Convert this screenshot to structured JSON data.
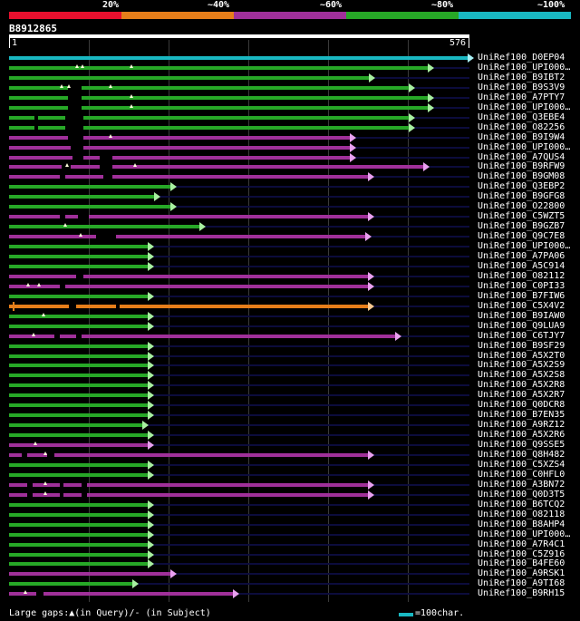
{
  "legend": {
    "labels": [
      "20%",
      "~40%",
      "~60%",
      "~80%",
      "~100%"
    ],
    "colors": [
      "#e8102e",
      "#e67e1a",
      "#a0309a",
      "#27a827",
      "#19b8c2"
    ]
  },
  "query": {
    "id": "B8912865",
    "start": "1",
    "end": "576"
  },
  "hits": [
    {
      "label": "UniRef100_D0EP04",
      "color": "#19b8c2",
      "end": 516,
      "arrow": true,
      "gaps": [],
      "marks": []
    },
    {
      "label": "UniRef100_UPI000…",
      "color": "#27a827",
      "end": 472,
      "arrow": true,
      "gaps": [],
      "marks": [
        85,
        91,
        145
      ]
    },
    {
      "label": "UniRef100_B9IBT2",
      "color": "#27a827",
      "end": 407,
      "arrow": true,
      "gaps": [],
      "marks": []
    },
    {
      "label": "UniRef100_B9S3V9",
      "color": "#27a827",
      "end": 451,
      "arrow": true,
      "gaps": [
        [
          75,
          90
        ]
      ],
      "marks": [
        68,
        76,
        122
      ]
    },
    {
      "label": "UniRef100_A7PTY7",
      "color": "#27a827",
      "end": 472,
      "arrow": true,
      "gaps": [
        [
          75,
          90
        ]
      ],
      "marks": [
        145
      ]
    },
    {
      "label": "UniRef100_UPI000…",
      "color": "#27a827",
      "end": 472,
      "arrow": true,
      "gaps": [
        [
          75,
          90
        ]
      ],
      "marks": [
        145
      ]
    },
    {
      "label": "UniRef100_Q3EBE4",
      "color": "#27a827",
      "end": 451,
      "arrow": true,
      "gaps": [
        [
          38,
          42
        ],
        [
          72,
          92
        ]
      ],
      "marks": []
    },
    {
      "label": "UniRef100_O82256",
      "color": "#27a827",
      "end": 451,
      "arrow": true,
      "gaps": [
        [
          38,
          42
        ],
        [
          72,
          92
        ]
      ],
      "marks": []
    },
    {
      "label": "UniRef100_B9I9W4",
      "color": "#a0309a",
      "end": 386,
      "arrow": true,
      "gaps": [
        [
          75,
          92
        ]
      ],
      "marks": [
        122
      ]
    },
    {
      "label": "UniRef100_UPI000…",
      "color": "#a0309a",
      "end": 386,
      "arrow": true,
      "gaps": [
        [
          78,
          92
        ]
      ],
      "marks": []
    },
    {
      "label": "UniRef100_A7QUS4",
      "color": "#a0309a",
      "end": 386,
      "arrow": true,
      "gaps": [
        [
          80,
          92
        ],
        [
          110,
          124
        ]
      ],
      "marks": []
    },
    {
      "label": "UniRef100_B9RFW9",
      "color": "#a0309a",
      "end": 467,
      "arrow": true,
      "gaps": [
        [
          68,
          78
        ],
        [
          110,
          124
        ]
      ],
      "marks": [
        74,
        149
      ]
    },
    {
      "label": "UniRef100_B9GM08",
      "color": "#a0309a",
      "end": 406,
      "arrow": true,
      "gaps": [
        [
          66,
          72
        ],
        [
          114,
          124
        ]
      ],
      "marks": []
    },
    {
      "label": "UniRef100_Q3EBP2",
      "color": "#27a827",
      "end": 188,
      "arrow": true,
      "gaps": [],
      "marks": []
    },
    {
      "label": "UniRef100_B9GFG8",
      "color": "#27a827",
      "end": 170,
      "arrow": true,
      "gaps": [],
      "marks": []
    },
    {
      "label": "UniRef100_O22800",
      "color": "#27a827",
      "end": 188,
      "arrow": true,
      "gaps": [],
      "marks": []
    },
    {
      "label": "UniRef100_C5WZT5",
      "color": "#a0309a",
      "end": 406,
      "arrow": true,
      "gaps": [
        [
          66,
          72
        ],
        [
          86,
          98
        ]
      ],
      "marks": []
    },
    {
      "label": "UniRef100_B9GZB7",
      "color": "#27a827",
      "end": 220,
      "arrow": true,
      "gaps": [],
      "marks": [
        72
      ]
    },
    {
      "label": "UniRef100_Q9C7E8",
      "color": "#a0309a",
      "end": 403,
      "arrow": true,
      "gaps": [
        [
          106,
          128
        ]
      ],
      "marks": [
        89
      ]
    },
    {
      "label": "UniRef100_UPI000…",
      "color": "#27a827",
      "end": 163,
      "arrow": true,
      "gaps": [],
      "marks": []
    },
    {
      "label": "UniRef100_A7PA06",
      "color": "#27a827",
      "end": 163,
      "arrow": true,
      "gaps": [],
      "marks": []
    },
    {
      "label": "UniRef100_A5C914",
      "color": "#27a827",
      "end": 163,
      "arrow": true,
      "gaps": [],
      "marks": []
    },
    {
      "label": "UniRef100_O82112",
      "color": "#a0309a",
      "end": 406,
      "arrow": true,
      "gaps": [
        [
          84,
          92
        ]
      ],
      "marks": []
    },
    {
      "label": "UniRef100_C0PI33",
      "color": "#a0309a",
      "end": 406,
      "arrow": true,
      "gaps": [
        [
          66,
          72
        ]
      ],
      "marks": [
        31,
        43
      ]
    },
    {
      "label": "UniRef100_B7FIW6",
      "color": "#27a827",
      "end": 163,
      "arrow": true,
      "gaps": [],
      "marks": []
    },
    {
      "label": "UniRef100_C5X4V2",
      "color": "#e67e1a",
      "end": 406,
      "arrow": true,
      "startCap": true,
      "gaps": [
        [
          76,
          84
        ],
        [
          128,
          132
        ]
      ],
      "marks": []
    },
    {
      "label": "UniRef100_B9IAW0",
      "color": "#27a827",
      "end": 163,
      "arrow": true,
      "gaps": [],
      "marks": [
        48
      ]
    },
    {
      "label": "UniRef100_Q9LUA9",
      "color": "#27a827",
      "end": 163,
      "arrow": true,
      "gaps": [],
      "marks": []
    },
    {
      "label": "UniRef100_C6TJY7",
      "color": "#a0309a",
      "end": 436,
      "arrow": true,
      "gaps": [
        [
          60,
          66
        ],
        [
          84,
          90
        ]
      ],
      "marks": [
        37
      ]
    },
    {
      "label": "UniRef100_B9SF29",
      "color": "#27a827",
      "end": 163,
      "arrow": true,
      "gaps": [],
      "marks": []
    },
    {
      "label": "UniRef100_A5X2T0",
      "color": "#27a827",
      "end": 163,
      "arrow": true,
      "gaps": [],
      "marks": []
    },
    {
      "label": "UniRef100_A5X2S9",
      "color": "#27a827",
      "end": 163,
      "arrow": true,
      "gaps": [],
      "marks": []
    },
    {
      "label": "UniRef100_A5X2S8",
      "color": "#27a827",
      "end": 163,
      "arrow": true,
      "gaps": [],
      "marks": []
    },
    {
      "label": "UniRef100_A5X2R8",
      "color": "#27a827",
      "end": 163,
      "arrow": true,
      "gaps": [],
      "marks": []
    },
    {
      "label": "UniRef100_A5X2R7",
      "color": "#27a827",
      "end": 163,
      "arrow": true,
      "gaps": [],
      "marks": []
    },
    {
      "label": "UniRef100_Q0DCR8",
      "color": "#27a827",
      "end": 163,
      "arrow": true,
      "gaps": [],
      "marks": []
    },
    {
      "label": "UniRef100_B7EN35",
      "color": "#27a827",
      "end": 163,
      "arrow": true,
      "gaps": [],
      "marks": []
    },
    {
      "label": "UniRef100_A9RZ12",
      "color": "#27a827",
      "end": 157,
      "arrow": true,
      "gaps": [],
      "marks": []
    },
    {
      "label": "UniRef100_A5X2R6",
      "color": "#27a827",
      "end": 163,
      "arrow": true,
      "gaps": [],
      "marks": []
    },
    {
      "label": "UniRef100_Q9SSE5",
      "color": "#a0309a",
      "end": 163,
      "arrow": true,
      "gaps": [],
      "marks": [
        39
      ]
    },
    {
      "label": "UniRef100_Q8H482",
      "color": "#a0309a",
      "end": 406,
      "arrow": true,
      "gaps": [
        [
          24,
          30
        ],
        [
          52,
          60
        ]
      ],
      "marks": [
        50
      ]
    },
    {
      "label": "UniRef100_C5XZS4",
      "color": "#27a827",
      "end": 163,
      "arrow": true,
      "gaps": [],
      "marks": []
    },
    {
      "label": "UniRef100_C0HFL0",
      "color": "#27a827",
      "end": 163,
      "arrow": true,
      "gaps": [],
      "marks": []
    },
    {
      "label": "UniRef100_A3BN72",
      "color": "#a0309a",
      "end": 406,
      "arrow": true,
      "gaps": [
        [
          30,
          36
        ],
        [
          66,
          70
        ],
        [
          90,
          96
        ]
      ],
      "marks": [
        50
      ]
    },
    {
      "label": "UniRef100_Q0D3T5",
      "color": "#a0309a",
      "end": 406,
      "arrow": true,
      "gaps": [
        [
          30,
          36
        ],
        [
          66,
          70
        ],
        [
          90,
          96
        ]
      ],
      "marks": [
        50
      ]
    },
    {
      "label": "UniRef100_B6TCQ2",
      "color": "#27a827",
      "end": 163,
      "arrow": true,
      "gaps": [],
      "marks": []
    },
    {
      "label": "UniRef100_O82118",
      "color": "#27a827",
      "end": 163,
      "arrow": true,
      "gaps": [],
      "marks": []
    },
    {
      "label": "UniRef100_B8AHP4",
      "color": "#27a827",
      "end": 163,
      "arrow": true,
      "gaps": [],
      "marks": []
    },
    {
      "label": "UniRef100_UPI000…",
      "color": "#27a827",
      "end": 163,
      "arrow": true,
      "gaps": [],
      "marks": []
    },
    {
      "label": "UniRef100_A7R4C1",
      "color": "#27a827",
      "end": 163,
      "arrow": true,
      "gaps": [],
      "marks": []
    },
    {
      "label": "UniRef100_C5Z916",
      "color": "#27a827",
      "end": 163,
      "arrow": true,
      "gaps": [],
      "marks": []
    },
    {
      "label": "UniRef100_B4FE60",
      "color": "#27a827",
      "end": 163,
      "arrow": true,
      "gaps": [],
      "marks": []
    },
    {
      "label": "UniRef100_A9RSK1",
      "color": "#a0309a",
      "end": 188,
      "arrow": true,
      "gaps": [],
      "marks": []
    },
    {
      "label": "UniRef100_A9TI68",
      "color": "#27a827",
      "end": 146,
      "arrow": true,
      "gaps": [],
      "marks": []
    },
    {
      "label": "UniRef100_B9RH15",
      "color": "#a0309a",
      "end": 257,
      "arrow": true,
      "gaps": [
        [
          40,
          48
        ]
      ],
      "marks": [
        28
      ]
    }
  ],
  "footer": {
    "gaps_text": "Large gaps:▲(in Query)/- (in Subject)",
    "scale_text": "=100char.",
    "scale_color": "#19b8c2"
  }
}
